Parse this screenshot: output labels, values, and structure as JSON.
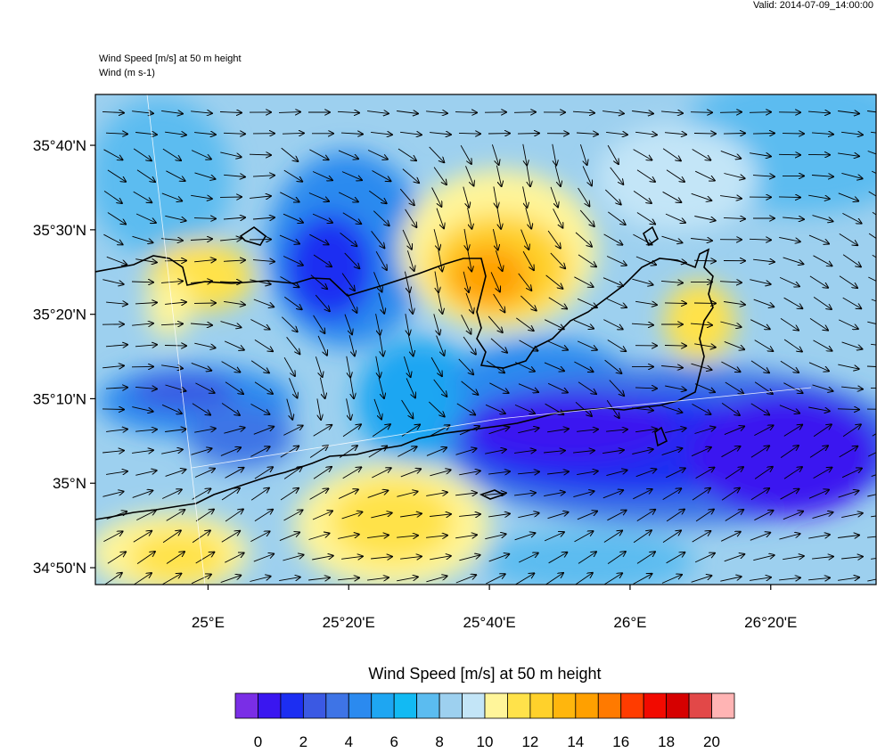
{
  "header": {
    "valid_time": "Valid: 2014-07-09_14:00:00",
    "field_title": "Wind Speed [m/s] at 50 m height",
    "vector_title": "Wind   (m s-1)"
  },
  "map": {
    "lat_ticks": [
      {
        "label": "35°40'N",
        "value": 35.6667
      },
      {
        "label": "35°30'N",
        "value": 35.5
      },
      {
        "label": "35°20'N",
        "value": 35.3333
      },
      {
        "label": "35°10'N",
        "value": 35.1667
      },
      {
        "label": "35°N",
        "value": 35.0
      },
      {
        "label": "34°50'N",
        "value": 34.8333
      }
    ],
    "lon_ticks": [
      {
        "label": "25°E",
        "value": 25.0
      },
      {
        "label": "25°20'E",
        "value": 25.3333
      },
      {
        "label": "25°40'E",
        "value": 25.6667
      },
      {
        "label": "26°E",
        "value": 26.0
      },
      {
        "label": "26°20'E",
        "value": 26.3333
      }
    ],
    "lon_range": [
      24.733,
      26.583
    ],
    "lat_range": [
      34.8,
      35.767
    ],
    "land_color": "#000000",
    "coastline_color": "#000000"
  },
  "colorbar": {
    "title": "Wind Speed [m/s] at 50 m height",
    "tick_labels": [
      "0",
      "2",
      "4",
      "6",
      "8",
      "10",
      "12",
      "14",
      "16",
      "18",
      "20"
    ],
    "colors": [
      "#7a2ee6",
      "#3a16f0",
      "#1c2ef2",
      "#3b59e3",
      "#3e74e6",
      "#2b8aef",
      "#1ea6f2",
      "#12baf3",
      "#5bbcf0",
      "#9dd0ef",
      "#c3e5f7",
      "#fff59a",
      "#ffe24a",
      "#ffd12b",
      "#ffb60d",
      "#ffa000",
      "#ff7a00",
      "#ff3c00",
      "#f20a00",
      "#d60000",
      "#e24848",
      "#ffb4b4"
    ]
  }
}
